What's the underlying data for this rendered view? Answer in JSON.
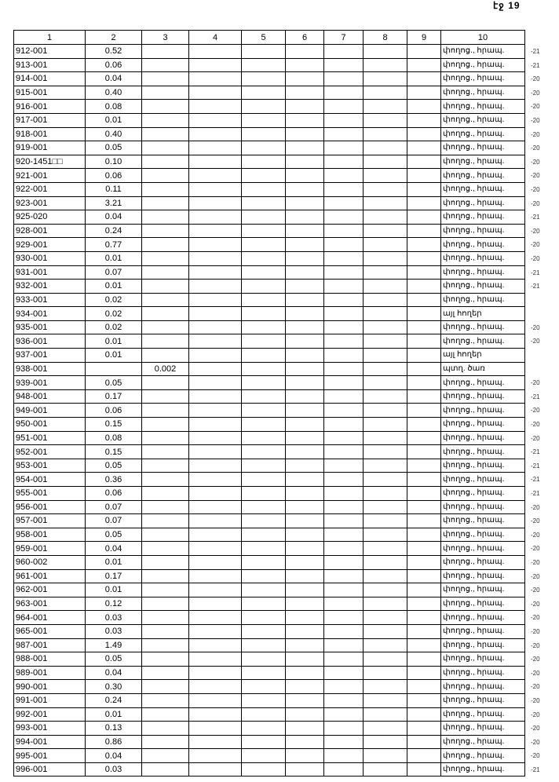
{
  "page_number": "էջ 19",
  "headers": [
    "1",
    "2",
    "3",
    "4",
    "5",
    "6",
    "7",
    "8",
    "9",
    "10"
  ],
  "rows": [
    {
      "id": "912-001",
      "c2": "0.52",
      "c3": "",
      "c10": "փողոց., հրապ.",
      "mark": "-21"
    },
    {
      "id": "913-001",
      "c2": "0.06",
      "c3": "",
      "c10": "փողոց., հրապ.",
      "mark": "-21"
    },
    {
      "id": "914-001",
      "c2": "0.04",
      "c3": "",
      "c10": "փողոց., հրապ.",
      "mark": "-20"
    },
    {
      "id": "915-001",
      "c2": "0.40",
      "c3": "",
      "c10": "փողոց., հրապ.",
      "mark": "-20"
    },
    {
      "id": "916-001",
      "c2": "0.08",
      "c3": "",
      "c10": "փողոց., հրապ.",
      "mark": "-20"
    },
    {
      "id": "917-001",
      "c2": "0.01",
      "c3": "",
      "c10": "փողոց., հրապ.",
      "mark": "-20"
    },
    {
      "id": "918-001",
      "c2": "0.40",
      "c3": "",
      "c10": "փողոց., հրապ.",
      "mark": "-20"
    },
    {
      "id": "919-001",
      "c2": "0.05",
      "c3": "",
      "c10": "փողոց., հրապ.",
      "mark": "-20"
    },
    {
      "id": "920-1451□□",
      "c2": "0.10",
      "c3": "",
      "c10": "փողոց., հրապ.",
      "mark": "-20"
    },
    {
      "id": "921-001",
      "c2": "0.06",
      "c3": "",
      "c10": "փողոց., հրապ.",
      "mark": "-20"
    },
    {
      "id": "922-001",
      "c2": "0.11",
      "c3": "",
      "c10": "փողոց., հրապ.",
      "mark": "-20"
    },
    {
      "id": "923-001",
      "c2": "3.21",
      "c3": "",
      "c10": "փողոց., հրապ.",
      "mark": "-20"
    },
    {
      "id": "925-020",
      "c2": "0.04",
      "c3": "",
      "c10": "փողոց., հրապ.",
      "mark": "-21"
    },
    {
      "id": "928-001",
      "c2": "0.24",
      "c3": "",
      "c10": "փողոց., հրապ.",
      "mark": "-20"
    },
    {
      "id": "929-001",
      "c2": "0.77",
      "c3": "",
      "c10": "փողոց., հրապ.",
      "mark": "-20"
    },
    {
      "id": "930-001",
      "c2": "0.01",
      "c3": "",
      "c10": "փողոց., հրապ.",
      "mark": "-20"
    },
    {
      "id": "931-001",
      "c2": "0.07",
      "c3": "",
      "c10": "փողոց., հրապ.",
      "mark": "-21"
    },
    {
      "id": "932-001",
      "c2": "0.01",
      "c3": "",
      "c10": "փողոց., հրապ.",
      "mark": "-21"
    },
    {
      "id": "933-001",
      "c2": "0.02",
      "c3": "",
      "c10": "փողոց., հրապ.",
      "mark": ""
    },
    {
      "id": "934-001",
      "c2": "0.02",
      "c3": "",
      "c10": "այլ հողեր",
      "mark": ""
    },
    {
      "id": "935-001",
      "c2": "0.02",
      "c3": "",
      "c10": "փողոց., հրապ.",
      "mark": "-20"
    },
    {
      "id": "936-001",
      "c2": "0.01",
      "c3": "",
      "c10": "փողոց., հրապ.",
      "mark": "-20"
    },
    {
      "id": "937-001",
      "c2": "0.01",
      "c3": "",
      "c10": "այլ հողեր",
      "mark": ""
    },
    {
      "id": "938-001",
      "c2": "",
      "c3": "0.002",
      "c10": "պտղ. ծառ",
      "mark": ""
    },
    {
      "id": "939-001",
      "c2": "0.05",
      "c3": "",
      "c10": "փողոց., հրապ.",
      "mark": "-20"
    },
    {
      "id": "948-001",
      "c2": "0.17",
      "c3": "",
      "c10": "փողոց., հրապ.",
      "mark": "-21"
    },
    {
      "id": "949-001",
      "c2": "0.06",
      "c3": "",
      "c10": "փողոց., հրապ.",
      "mark": "-20"
    },
    {
      "id": "950-001",
      "c2": "0.15",
      "c3": "",
      "c10": "փողոց., հրապ.",
      "mark": "-20"
    },
    {
      "id": "951-001",
      "c2": "0.08",
      "c3": "",
      "c10": "փողոց., հրապ.",
      "mark": "-20"
    },
    {
      "id": "952-001",
      "c2": "0.15",
      "c3": "",
      "c10": "փողոց., հրապ.",
      "mark": "-21"
    },
    {
      "id": "953-001",
      "c2": "0.05",
      "c3": "",
      "c10": "փողոց., հրապ.",
      "mark": "-21"
    },
    {
      "id": "954-001",
      "c2": "0.36",
      "c3": "",
      "c10": "փողոց., հրապ.",
      "mark": "-21"
    },
    {
      "id": "955-001",
      "c2": "0.06",
      "c3": "",
      "c10": "փողոց., հրապ.",
      "mark": "-21"
    },
    {
      "id": "956-001",
      "c2": "0.07",
      "c3": "",
      "c10": "փողոց., հրապ.",
      "mark": "-20"
    },
    {
      "id": "957-001",
      "c2": "0.07",
      "c3": "",
      "c10": "փողոց., հրապ.",
      "mark": "-20"
    },
    {
      "id": "958-001",
      "c2": "0.05",
      "c3": "",
      "c10": "փողոց., հրապ.",
      "mark": "-20"
    },
    {
      "id": "959-001",
      "c2": "0.04",
      "c3": "",
      "c10": "փողոց., հրապ.",
      "mark": "-20"
    },
    {
      "id": "960-002",
      "c2": "0.01",
      "c3": "",
      "c10": "փողոց., հրապ.",
      "mark": "-20"
    },
    {
      "id": "961-001",
      "c2": "0.17",
      "c3": "",
      "c10": "փողոց., հրապ.",
      "mark": "-20"
    },
    {
      "id": "962-001",
      "c2": "0.01",
      "c3": "",
      "c10": "փողոց., հրապ.",
      "mark": "-20"
    },
    {
      "id": "963-001",
      "c2": "0.12",
      "c3": "",
      "c10": "փողոց., հրապ.",
      "mark": "-20"
    },
    {
      "id": "964-001",
      "c2": "0.03",
      "c3": "",
      "c10": "փողոց., հրապ.",
      "mark": "-20"
    },
    {
      "id": "965-001",
      "c2": "0.03",
      "c3": "",
      "c10": "փողոց., հրապ.",
      "mark": "-20"
    },
    {
      "id": "987-001",
      "c2": "1.49",
      "c3": "",
      "c10": "փողոց., հրապ.",
      "mark": "-20"
    },
    {
      "id": "988-001",
      "c2": "0.05",
      "c3": "",
      "c10": "փողոց., հրապ.",
      "mark": "-20"
    },
    {
      "id": "989-001",
      "c2": "0.04",
      "c3": "",
      "c10": "փողոց., հրապ.",
      "mark": "-20"
    },
    {
      "id": "990-001",
      "c2": "0.30",
      "c3": "",
      "c10": "փողոց., հրապ.",
      "mark": "-20"
    },
    {
      "id": "991-001",
      "c2": "0.24",
      "c3": "",
      "c10": "փողոց., հրապ.",
      "mark": "-20"
    },
    {
      "id": "992-001",
      "c2": "0.01",
      "c3": "",
      "c10": "փողոց., հրապ.",
      "mark": "-20"
    },
    {
      "id": "993-001",
      "c2": "0.13",
      "c3": "",
      "c10": "փողոց., հրապ.",
      "mark": "-20"
    },
    {
      "id": "994-001",
      "c2": "0.86",
      "c3": "",
      "c10": "փողոց., հրապ.",
      "mark": "-20"
    },
    {
      "id": "995-001",
      "c2": "0.04",
      "c3": "",
      "c10": "փողոց., հրապ.",
      "mark": "-20"
    },
    {
      "id": "996-001",
      "c2": "0.03",
      "c3": "",
      "c10": "փողոց., հրապ.",
      "mark": "-21"
    }
  ]
}
